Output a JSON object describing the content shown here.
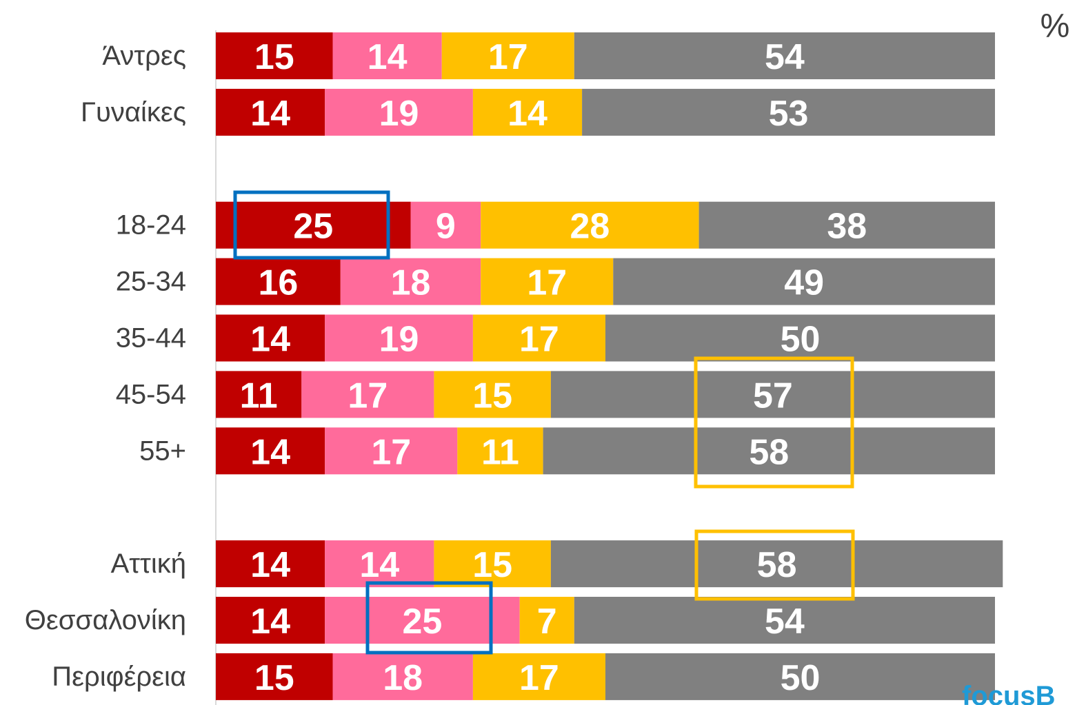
{
  "chart_data": {
    "type": "stacked-bar-horizontal",
    "unit_label": "%",
    "logo": "focusB",
    "categories": [
      "Άντρες",
      "Γυναίκες",
      null,
      "18-24",
      "25-34",
      "35-44",
      "45-54",
      "55+",
      null,
      "Αττική",
      "Θεσσαλονίκη",
      "Περιφέρεια"
    ],
    "series": [
      {
        "color": "#c00000",
        "values": [
          15,
          14,
          null,
          25,
          16,
          14,
          11,
          14,
          null,
          14,
          14,
          15
        ]
      },
      {
        "color": "#ff6b9b",
        "values": [
          14,
          19,
          null,
          9,
          18,
          19,
          17,
          17,
          null,
          14,
          25,
          18
        ]
      },
      {
        "color": "#ffc000",
        "values": [
          17,
          14,
          null,
          28,
          17,
          17,
          15,
          11,
          null,
          15,
          7,
          17
        ]
      },
      {
        "color": "#808080",
        "values": [
          54,
          53,
          null,
          38,
          49,
          50,
          57,
          58,
          null,
          58,
          54,
          50
        ]
      }
    ],
    "xlim": [
      0,
      100
    ]
  }
}
